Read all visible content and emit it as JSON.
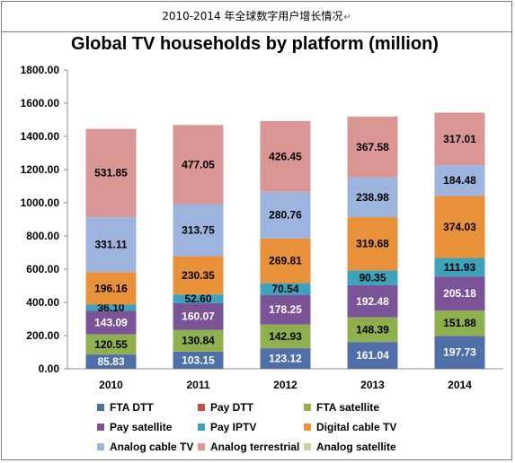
{
  "caption": {
    "text": "2010-2014 年全球数字用户增长情况",
    "mark": "↵"
  },
  "chart_data": {
    "type": "bar",
    "stacked": true,
    "title": "Global TV households by platform (million)",
    "xlabel": "",
    "ylabel": "",
    "ylim": [
      0,
      1800
    ],
    "yticks": [
      "0.00",
      "200.00",
      "400.00",
      "600.00",
      "800.00",
      "1000.00",
      "1200.00",
      "1400.00",
      "1600.00",
      "1800.00"
    ],
    "grid": false,
    "legend_position": "bottom",
    "categories": [
      "2010",
      "2011",
      "2012",
      "2013",
      "2014"
    ],
    "series": [
      {
        "name": "FTA DTT",
        "color": "#4f6fa8",
        "label_color": "#ffffff",
        "values": [
          85.83,
          103.15,
          123.12,
          161.04,
          197.73
        ],
        "labels": [
          "85.83",
          "103.15",
          "123.12",
          "161.04",
          "197.73"
        ]
      },
      {
        "name": "Pay DTT",
        "color": "#c0504d",
        "label_color": "#000000",
        "values": [
          1,
          1,
          1,
          1,
          1
        ],
        "labels": [
          "",
          "",
          "",
          "",
          ""
        ]
      },
      {
        "name": "FTA satellite",
        "color": "#8fb04f",
        "label_color": "#000000",
        "values": [
          120.55,
          130.84,
          142.93,
          148.39,
          151.88
        ],
        "labels": [
          "120.55",
          "130.84",
          "142.93",
          "148.39",
          "151.88"
        ]
      },
      {
        "name": "Pay satellite",
        "color": "#7a5496",
        "label_color": "#ffffff",
        "values": [
          143.09,
          160.07,
          178.25,
          192.48,
          205.18
        ],
        "labels": [
          "143.09",
          "160.07",
          "178.25",
          "192.48",
          "205.18"
        ]
      },
      {
        "name": "Pay IPTV",
        "color": "#3fa2bd",
        "label_color": "#000000",
        "values": [
          36.1,
          52.6,
          70.54,
          90.35,
          111.93
        ],
        "labels": [
          "36.10",
          "52.60",
          "70.54",
          "90.35",
          "111.93"
        ]
      },
      {
        "name": "Digital cable TV",
        "color": "#e8913a",
        "label_color": "#000000",
        "values": [
          196.16,
          230.35,
          269.81,
          319.68,
          374.03
        ],
        "labels": [
          "196.16",
          "230.35",
          "269.81",
          "319.68",
          "374.03"
        ]
      },
      {
        "name": "Analog cable TV",
        "color": "#9db5de",
        "label_color": "#000000",
        "values": [
          331.11,
          313.75,
          280.76,
          238.98,
          184.48
        ],
        "labels": [
          "331.11",
          "313.75",
          "280.76",
          "238.98",
          "184.48"
        ]
      },
      {
        "name": "Analog terrestrial",
        "color": "#d99694",
        "label_color": "#000000",
        "values": [
          531.85,
          477.05,
          426.45,
          367.58,
          317.01
        ],
        "labels": [
          "531.85",
          "477.05",
          "426.45",
          "367.58",
          "317.01"
        ]
      },
      {
        "name": "Analog satellite",
        "color": "#c2d69b",
        "label_color": "#000000",
        "values": [
          0,
          0,
          0,
          0,
          0
        ],
        "labels": [
          "",
          "",
          "",
          "",
          ""
        ]
      }
    ]
  }
}
